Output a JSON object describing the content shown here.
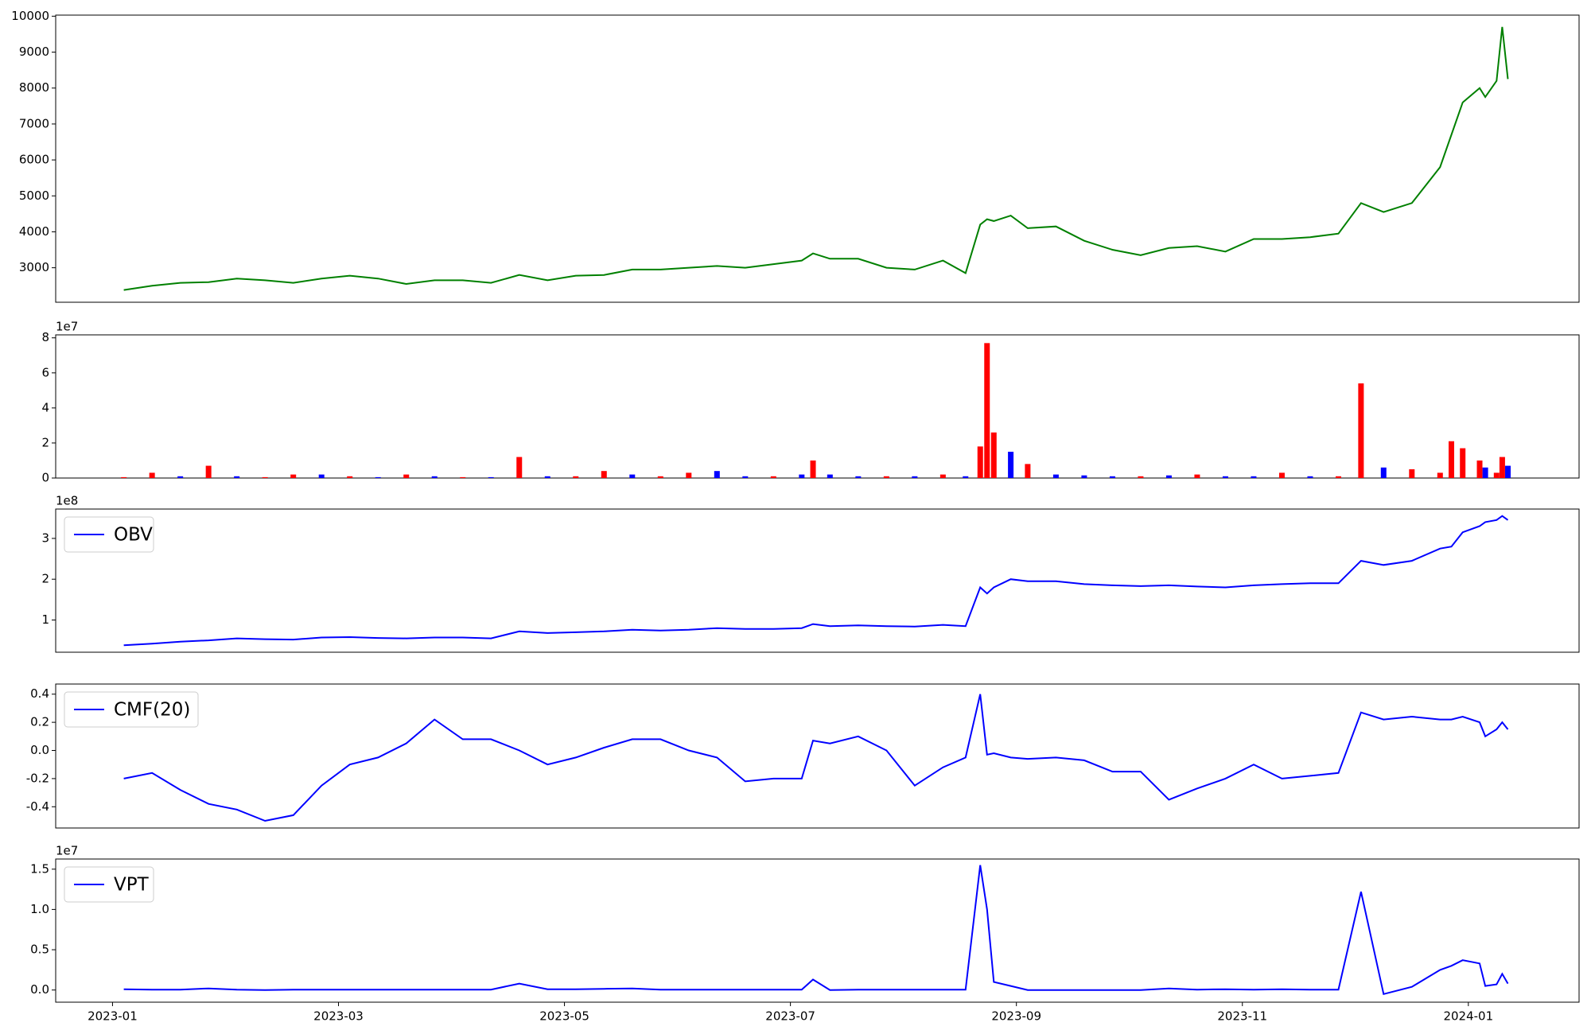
{
  "chart_data": [
    {
      "type": "line",
      "x": [
        0.1,
        0.35,
        0.6,
        0.85,
        1.1,
        1.35,
        1.6,
        1.85,
        2.1,
        2.35,
        2.6,
        2.85,
        3.1,
        3.35,
        3.6,
        3.85,
        4.1,
        4.35,
        4.6,
        4.85,
        5.1,
        5.35,
        5.6,
        5.85,
        6.1,
        6.2,
        6.35,
        6.6,
        6.85,
        7.1,
        7.35,
        7.55,
        7.68,
        7.74,
        7.8,
        7.95,
        8.1,
        8.35,
        8.6,
        8.85,
        9.1,
        9.35,
        9.6,
        9.85,
        10.1,
        10.35,
        10.6,
        10.85,
        11.05,
        11.25,
        11.5,
        11.75,
        11.85,
        11.95,
        12.1,
        12.15,
        12.25,
        12.3,
        12.35
      ],
      "series": [
        {
          "color": "#008000",
          "values": [
            2380,
            2500,
            2580,
            2600,
            2700,
            2650,
            2580,
            2700,
            2780,
            2700,
            2550,
            2650,
            2650,
            2580,
            2800,
            2650,
            2780,
            2800,
            2950,
            2950,
            3000,
            3050,
            3000,
            3100,
            3200,
            3400,
            3250,
            3250,
            3000,
            2950,
            3200,
            2850,
            4200,
            4350,
            4300,
            4450,
            4100,
            4150,
            3750,
            3500,
            3350,
            3550,
            3600,
            3450,
            3800,
            3800,
            3850,
            3950,
            4800,
            4550,
            4800,
            5800,
            6700,
            7600,
            8000,
            7750,
            8200,
            9700,
            8250
          ]
        }
      ],
      "xlim": [
        -0.503,
        12.98
      ],
      "ylim": [
        2040,
        10030
      ],
      "yticks": [
        3000,
        4000,
        5000,
        6000,
        7000,
        8000,
        9000,
        10000
      ]
    },
    {
      "type": "bar",
      "x": [
        0.1,
        0.35,
        0.6,
        0.85,
        1.1,
        1.35,
        1.6,
        1.85,
        2.1,
        2.35,
        2.6,
        2.85,
        3.1,
        3.35,
        3.6,
        3.85,
        4.1,
        4.35,
        4.6,
        4.85,
        5.1,
        5.35,
        5.6,
        5.85,
        6.1,
        6.2,
        6.35,
        6.6,
        6.85,
        7.1,
        7.35,
        7.55,
        7.68,
        7.74,
        7.8,
        7.95,
        8.1,
        8.35,
        8.6,
        8.85,
        9.1,
        9.35,
        9.6,
        9.85,
        10.1,
        10.35,
        10.6,
        10.85,
        11.05,
        11.25,
        11.5,
        11.75,
        11.85,
        11.95,
        12.1,
        12.15,
        12.25,
        12.3,
        12.35
      ],
      "values": [
        0.05,
        0.3,
        0.1,
        0.7,
        0.1,
        0.05,
        0.2,
        0.2,
        0.1,
        0.05,
        0.2,
        0.1,
        0.05,
        0.05,
        1.2,
        0.1,
        0.1,
        0.4,
        0.2,
        0.1,
        0.3,
        0.4,
        0.1,
        0.1,
        0.2,
        1.0,
        0.2,
        0.1,
        0.1,
        0.1,
        0.2,
        0.1,
        1.8,
        7.7,
        2.6,
        1.5,
        0.8,
        0.2,
        0.15,
        0.1,
        0.1,
        0.15,
        0.2,
        0.1,
        0.1,
        0.3,
        0.1,
        0.1,
        5.4,
        0.6,
        0.5,
        0.3,
        2.1,
        1.7,
        1.0,
        0.6,
        0.3,
        1.2,
        0.7
      ],
      "colors": [
        "#ff0000",
        "#ff0000",
        "#0000ff",
        "#ff0000",
        "#0000ff",
        "#ff0000",
        "#ff0000",
        "#0000ff",
        "#ff0000",
        "#0000ff",
        "#ff0000",
        "#0000ff",
        "#ff0000",
        "#0000ff",
        "#ff0000",
        "#0000ff",
        "#ff0000",
        "#ff0000",
        "#0000ff",
        "#ff0000",
        "#ff0000",
        "#0000ff",
        "#0000ff",
        "#ff0000",
        "#0000ff",
        "#ff0000",
        "#0000ff",
        "#0000ff",
        "#ff0000",
        "#0000ff",
        "#ff0000",
        "#0000ff",
        "#ff0000",
        "#ff0000",
        "#ff0000",
        "#0000ff",
        "#ff0000",
        "#0000ff",
        "#0000ff",
        "#0000ff",
        "#ff0000",
        "#0000ff",
        "#ff0000",
        "#0000ff",
        "#0000ff",
        "#ff0000",
        "#0000ff",
        "#ff0000",
        "#ff0000",
        "#0000ff",
        "#ff0000",
        "#ff0000",
        "#ff0000",
        "#ff0000",
        "#ff0000",
        "#0000ff",
        "#ff0000",
        "#ff0000",
        "#0000ff"
      ],
      "offset_text": "1e7",
      "xlim": [
        -0.503,
        12.98
      ],
      "ylim": [
        0,
        8.17
      ],
      "yticks": [
        0,
        2,
        4,
        6,
        8
      ]
    },
    {
      "type": "line",
      "x": [
        0.1,
        0.35,
        0.6,
        0.85,
        1.1,
        1.35,
        1.6,
        1.85,
        2.1,
        2.35,
        2.6,
        2.85,
        3.1,
        3.35,
        3.6,
        3.85,
        4.1,
        4.35,
        4.6,
        4.85,
        5.1,
        5.35,
        5.6,
        5.85,
        6.1,
        6.2,
        6.35,
        6.6,
        6.85,
        7.1,
        7.35,
        7.55,
        7.68,
        7.74,
        7.8,
        7.95,
        8.1,
        8.35,
        8.6,
        8.85,
        9.1,
        9.35,
        9.6,
        9.85,
        10.1,
        10.35,
        10.6,
        10.85,
        11.05,
        11.25,
        11.5,
        11.75,
        11.85,
        11.95,
        12.1,
        12.15,
        12.25,
        12.3,
        12.35
      ],
      "series": [
        {
          "name": "OBV",
          "color": "#0000ff",
          "values": [
            0.38,
            0.42,
            0.47,
            0.5,
            0.55,
            0.53,
            0.52,
            0.57,
            0.58,
            0.56,
            0.55,
            0.57,
            0.57,
            0.55,
            0.72,
            0.68,
            0.7,
            0.72,
            0.76,
            0.74,
            0.76,
            0.8,
            0.78,
            0.78,
            0.8,
            0.9,
            0.85,
            0.87,
            0.85,
            0.84,
            0.88,
            0.85,
            1.8,
            1.65,
            1.8,
            2.0,
            1.95,
            1.95,
            1.88,
            1.85,
            1.83,
            1.85,
            1.82,
            1.8,
            1.85,
            1.88,
            1.9,
            1.9,
            2.45,
            2.35,
            2.45,
            2.75,
            2.8,
            3.15,
            3.3,
            3.4,
            3.45,
            3.55,
            3.45
          ]
        }
      ],
      "offset_text": "1e8",
      "legend": "upper left",
      "xlim": [
        -0.503,
        12.98
      ],
      "ylim": [
        0.21,
        3.72
      ],
      "yticks": [
        1,
        2,
        3
      ]
    },
    {
      "type": "line",
      "x": [
        0.1,
        0.35,
        0.6,
        0.85,
        1.1,
        1.35,
        1.6,
        1.85,
        2.1,
        2.35,
        2.6,
        2.85,
        3.1,
        3.35,
        3.6,
        3.85,
        4.1,
        4.35,
        4.6,
        4.85,
        5.1,
        5.35,
        5.6,
        5.85,
        6.1,
        6.2,
        6.35,
        6.6,
        6.85,
        7.1,
        7.35,
        7.55,
        7.68,
        7.74,
        7.8,
        7.95,
        8.1,
        8.35,
        8.6,
        8.85,
        9.1,
        9.35,
        9.6,
        9.85,
        10.1,
        10.35,
        10.6,
        10.85,
        11.05,
        11.25,
        11.5,
        11.75,
        11.85,
        11.95,
        12.1,
        12.15,
        12.25,
        12.3,
        12.35
      ],
      "series": [
        {
          "name": "CMF(20)",
          "color": "#0000ff",
          "values": [
            -0.2,
            -0.16,
            -0.28,
            -0.38,
            -0.42,
            -0.5,
            -0.46,
            -0.25,
            -0.1,
            -0.05,
            0.05,
            0.22,
            0.08,
            0.08,
            0.0,
            -0.1,
            -0.05,
            0.02,
            0.08,
            0.08,
            0.0,
            -0.05,
            -0.22,
            -0.2,
            -0.2,
            0.07,
            0.05,
            0.1,
            0.0,
            -0.25,
            -0.12,
            -0.05,
            0.4,
            -0.03,
            -0.02,
            -0.05,
            -0.06,
            -0.05,
            -0.07,
            -0.15,
            -0.15,
            -0.35,
            -0.27,
            -0.2,
            -0.1,
            -0.2,
            -0.18,
            -0.16,
            0.27,
            0.22,
            0.24,
            0.22,
            0.22,
            0.24,
            0.2,
            0.1,
            0.15,
            0.2,
            0.15
          ]
        }
      ],
      "legend": "upper left",
      "xlim": [
        -0.503,
        12.98
      ],
      "ylim": [
        -0.551,
        0.472
      ],
      "yticks": [
        -0.4,
        -0.2,
        {
          "value": 0,
          "label": "0.0"
        },
        0.2,
        0.4
      ]
    },
    {
      "type": "line",
      "x": [
        0.1,
        0.35,
        0.6,
        0.85,
        1.1,
        1.35,
        1.6,
        1.85,
        2.1,
        2.35,
        2.6,
        2.85,
        3.1,
        3.35,
        3.6,
        3.85,
        4.1,
        4.35,
        4.6,
        4.85,
        5.1,
        5.35,
        5.6,
        5.85,
        6.1,
        6.2,
        6.35,
        6.6,
        6.85,
        7.1,
        7.35,
        7.55,
        7.68,
        7.74,
        7.8,
        7.95,
        8.1,
        8.35,
        8.6,
        8.85,
        9.1,
        9.35,
        9.6,
        9.85,
        10.1,
        10.35,
        10.6,
        10.85,
        11.05,
        11.25,
        11.5,
        11.75,
        11.85,
        11.95,
        12.1,
        12.15,
        12.25,
        12.3,
        12.35
      ],
      "series": [
        {
          "name": "VPT",
          "color": "#0000ff",
          "values": [
            0.01,
            0.005,
            0.005,
            0.02,
            0.005,
            0,
            0.005,
            0.005,
            0.005,
            0.005,
            0.005,
            0.005,
            0.005,
            0.005,
            0.08,
            0.01,
            0.01,
            0.015,
            0.02,
            0.005,
            0.005,
            0.005,
            0.005,
            0.005,
            0.005,
            0.13,
            0,
            0.005,
            0.005,
            0.005,
            0.005,
            0.005,
            1.55,
            1.0,
            0.1,
            0.05,
            0,
            0,
            0,
            0,
            0,
            0.02,
            0.005,
            0.01,
            0.005,
            0.01,
            0.005,
            0.005,
            1.22,
            -0.05,
            0.04,
            0.25,
            0.3,
            0.37,
            0.33,
            0.05,
            0.07,
            0.2,
            0.08
          ]
        }
      ],
      "offset_text": "1e7",
      "legend": "upper left",
      "xlim": [
        -0.503,
        12.98
      ],
      "ylim": [
        -0.151,
        1.626
      ],
      "yticks": [
        {
          "value": 0,
          "label": "0.0"
        },
        0.5,
        {
          "value": 1,
          "label": "1.0"
        },
        1.5
      ],
      "xticks": [
        {
          "value": 0,
          "label": "2023-01"
        },
        {
          "value": 2,
          "label": "2023-03"
        },
        {
          "value": 4,
          "label": "2023-05"
        },
        {
          "value": 6,
          "label": "2023-07"
        },
        {
          "value": 8,
          "label": "2023-09"
        },
        {
          "value": 10,
          "label": "2023-11"
        },
        {
          "value": 12,
          "label": "2024-01"
        }
      ]
    }
  ]
}
